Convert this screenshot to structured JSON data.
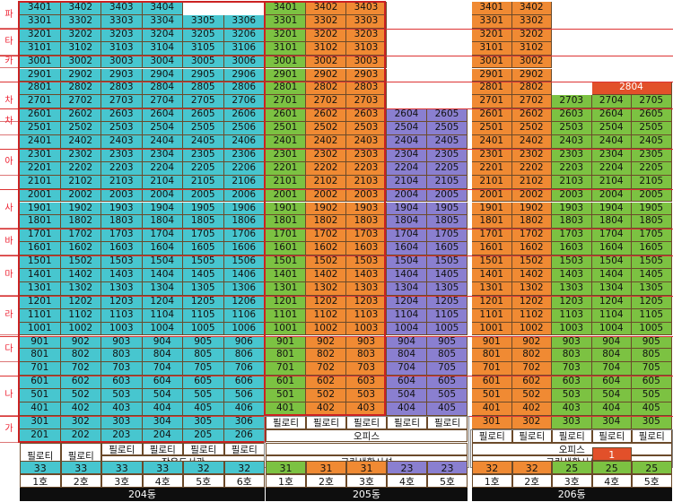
{
  "floors_left": [
    "파",
    "타",
    "카",
    "차",
    "차",
    "아",
    "사",
    "바",
    "마",
    "라",
    "다",
    "나",
    "가"
  ],
  "labels": {
    "piloti_b204_1": "필로티",
    "piloti_b204_2": "필로티",
    "piloti_b204_3": "필로티",
    "piloti_b204_4": "필로티",
    "piloti_b204_5": "필로티",
    "piloti_b204_6": "필로티",
    "b204_facility": "작은도서관",
    "b205_office": "오피스",
    "b205_piloti": "필로티",
    "b205_facility": "근린생활시설",
    "b206_office": "오피스",
    "b206_piloti": "필로티",
    "b206_facility": "근린생활시설"
  },
  "colors": {
    "cyan": "#47c6cf",
    "green": "#7cc242",
    "orange": "#f08a33",
    "purple": "#8a7fd0",
    "red": "#e2502a"
  },
  "buildings": [
    {
      "name": "204동",
      "lines": [
        "1호",
        "2호",
        "3호",
        "4호",
        "5호",
        "6호"
      ],
      "counts": [
        "33",
        "33",
        "33",
        "33",
        "32",
        "32"
      ],
      "count_colors": [
        "cyan",
        "cyan",
        "cyan",
        "cyan",
        "cyan",
        "cyan"
      ],
      "top_floor_per_line": [
        34,
        34,
        34,
        34,
        33,
        33
      ],
      "bottom_floor": 2,
      "unit_color": "cyan"
    },
    {
      "name": "205동",
      "lines": [
        "1호",
        "2호",
        "3호",
        "4호",
        "5호"
      ],
      "counts": [
        "31",
        "31",
        "31",
        "23",
        "23"
      ],
      "count_colors": [
        "green",
        "orange",
        "orange",
        "purple",
        "purple"
      ],
      "top_floor_per_line": [
        34,
        34,
        34,
        26,
        26
      ],
      "bottom_floor": 4
    },
    {
      "name": "206동",
      "lines": [
        "1호",
        "2호",
        "3호",
        "4호",
        "5호"
      ],
      "counts": [
        "32",
        "32",
        "25",
        "25",
        "25"
      ],
      "count_colors": [
        "orange",
        "orange",
        "green",
        "green",
        "green"
      ],
      "extra_count": "1",
      "special_unit": "2804",
      "top_floor_per_line": [
        34,
        34,
        27,
        27,
        27
      ],
      "bottom_floor": 3
    }
  ]
}
